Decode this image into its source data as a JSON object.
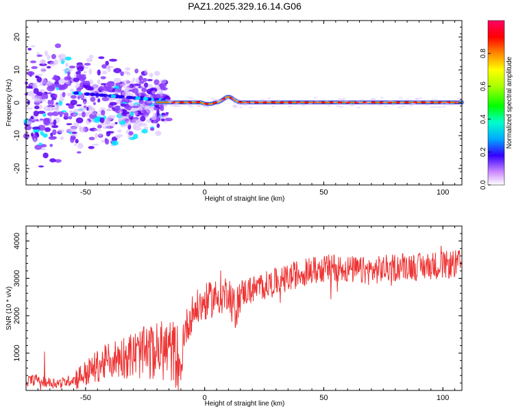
{
  "title": "PAZ1.2025.329.16.14.G06",
  "chart_data": [
    {
      "type": "heatmap",
      "name": "spectrogram",
      "xlabel": "Height of straight line (km)",
      "ylabel": "Frequency (Hz)",
      "xlim": [
        -75,
        108
      ],
      "ylim": [
        -25,
        25
      ],
      "xticks": [
        -50,
        0,
        50,
        100
      ],
      "yticks": [
        -20,
        -10,
        0,
        10,
        20
      ],
      "colorbar": {
        "label": "Normalized spectral amplitude",
        "range": [
          0,
          1
        ],
        "ticks": [
          "0.0",
          "0.2",
          "0.4",
          "0.6",
          "0.8"
        ]
      },
      "ridge_frequency": [
        {
          "x": 10,
          "y": 1.8
        },
        {
          "x": 0,
          "y": 0.2
        },
        {
          "x": 20,
          "y": 0.1
        },
        {
          "x": 53,
          "y": 0.5
        },
        {
          "x": 100,
          "y": 0.1
        }
      ],
      "colors": {
        "low": "#9370db",
        "mid": "#00e5ff",
        "high": "#ff0000"
      }
    },
    {
      "type": "line",
      "name": "snr",
      "xlabel": "Height of straight line (km)",
      "ylabel": "SNR (10 * v/v)",
      "xlim": [
        -75,
        108
      ],
      "ylim": [
        0,
        4400
      ],
      "xticks": [
        -50,
        0,
        50,
        100
      ],
      "yticks": [
        1000,
        2000,
        3000,
        4000
      ],
      "line_color": "#ee3333",
      "series": [
        {
          "name": "SNR",
          "x": [
            -75,
            -70,
            -65,
            -60,
            -55,
            -50,
            -45,
            -40,
            -35,
            -30,
            -25,
            -20,
            -15,
            -11,
            -10,
            -9,
            -5,
            0,
            5,
            8,
            10,
            13,
            15,
            20,
            25,
            30,
            35,
            40,
            45,
            50,
            55,
            60,
            65,
            70,
            75,
            80,
            85,
            90,
            95,
            100,
            108
          ],
          "y": [
            250,
            300,
            200,
            200,
            300,
            450,
            650,
            800,
            900,
            950,
            1000,
            1050,
            1100,
            900,
            250,
            1500,
            2100,
            2350,
            2500,
            2550,
            2700,
            2100,
            2600,
            2700,
            2800,
            2900,
            3000,
            3150,
            3200,
            3250,
            3300,
            3250,
            3200,
            3200,
            3250,
            3300,
            3350,
            3300,
            3350,
            3350,
            3400
          ]
        }
      ]
    }
  ]
}
